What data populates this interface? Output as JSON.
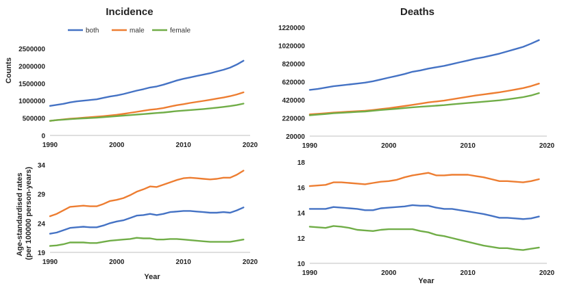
{
  "chart_data": [
    {
      "type": "line",
      "title": "Incidence",
      "xlabel": "",
      "ylabel": "Counts",
      "xlim": [
        1990,
        2020
      ],
      "ylim": [
        0,
        2500000
      ],
      "xticks": [
        "1990",
        "2000",
        "2010",
        "2020"
      ],
      "yticks": [
        "0",
        "500000",
        "1000000",
        "1500000",
        "2000000",
        "2500000"
      ],
      "legend": "top",
      "x": [
        1990,
        1991,
        1992,
        1993,
        1994,
        1995,
        1996,
        1997,
        1998,
        1999,
        2000,
        2001,
        2002,
        2003,
        2004,
        2005,
        2006,
        2007,
        2008,
        2009,
        2010,
        2011,
        2012,
        2013,
        2014,
        2015,
        2016,
        2017,
        2018,
        2019
      ],
      "series": [
        {
          "name": "both",
          "color": "#4472C4",
          "values": [
            850000,
            880000,
            910000,
            950000,
            980000,
            1000000,
            1020000,
            1040000,
            1080000,
            1120000,
            1150000,
            1190000,
            1240000,
            1290000,
            1330000,
            1380000,
            1410000,
            1460000,
            1520000,
            1580000,
            1630000,
            1670000,
            1710000,
            1750000,
            1790000,
            1840000,
            1890000,
            1950000,
            2040000,
            2150000
          ]
        },
        {
          "name": "male",
          "color": "#ED7D31",
          "values": [
            420000,
            440000,
            460000,
            480000,
            495000,
            510000,
            525000,
            540000,
            555000,
            575000,
            595000,
            620000,
            650000,
            680000,
            710000,
            740000,
            760000,
            790000,
            830000,
            870000,
            900000,
            935000,
            965000,
            995000,
            1025000,
            1060000,
            1090000,
            1130000,
            1180000,
            1240000
          ]
        },
        {
          "name": "female",
          "color": "#70AD47",
          "values": [
            420000,
            440000,
            455000,
            468000,
            480000,
            492000,
            500000,
            510000,
            525000,
            540000,
            555000,
            570000,
            585000,
            600000,
            615000,
            630000,
            645000,
            660000,
            680000,
            700000,
            715000,
            730000,
            745000,
            760000,
            780000,
            800000,
            820000,
            845000,
            875000,
            915000
          ]
        }
      ]
    },
    {
      "type": "line",
      "title": "Deaths",
      "xlabel": "",
      "ylabel": "",
      "xlim": [
        1990,
        2020
      ],
      "ylim": [
        20000,
        1220000
      ],
      "xticks": [
        "1990",
        "2000",
        "2010",
        "2020"
      ],
      "yticks": [
        "20000",
        "220000",
        "420000",
        "620000",
        "820000",
        "1020000",
        "1220000"
      ],
      "x": [
        1990,
        1991,
        1992,
        1993,
        1994,
        1995,
        1996,
        1997,
        1998,
        1999,
        2000,
        2001,
        2002,
        2003,
        2004,
        2005,
        2006,
        2007,
        2008,
        2009,
        2010,
        2011,
        2012,
        2013,
        2014,
        2015,
        2016,
        2017,
        2018,
        2019
      ],
      "series": [
        {
          "name": "both",
          "color": "#4472C4",
          "values": [
            530000,
            540000,
            555000,
            570000,
            580000,
            590000,
            600000,
            610000,
            625000,
            645000,
            665000,
            685000,
            705000,
            730000,
            745000,
            765000,
            780000,
            795000,
            815000,
            835000,
            855000,
            875000,
            890000,
            910000,
            930000,
            955000,
            980000,
            1005000,
            1040000,
            1080000
          ]
        },
        {
          "name": "male",
          "color": "#ED7D31",
          "values": [
            260000,
            265000,
            272000,
            280000,
            285000,
            290000,
            295000,
            300000,
            308000,
            318000,
            328000,
            340000,
            352000,
            365000,
            378000,
            392000,
            402000,
            412000,
            426000,
            440000,
            455000,
            468000,
            480000,
            492000,
            504000,
            518000,
            534000,
            550000,
            572000,
            600000
          ]
        },
        {
          "name": "female",
          "color": "#70AD47",
          "values": [
            250000,
            257000,
            264000,
            272000,
            277000,
            282000,
            287000,
            292000,
            300000,
            308000,
            315000,
            322000,
            330000,
            338000,
            344000,
            350000,
            356000,
            362000,
            370000,
            378000,
            385000,
            392000,
            400000,
            407000,
            415000,
            425000,
            437000,
            450000,
            468000,
            495000
          ]
        }
      ]
    },
    {
      "type": "line",
      "title": "",
      "xlabel": "Year",
      "ylabel": "Age-standardised rates\n(per 100000 person-years)",
      "xlim": [
        1990,
        2020
      ],
      "ylim": [
        19,
        34
      ],
      "xticks": [
        "1990",
        "2000",
        "2010",
        "2020"
      ],
      "yticks": [
        "19",
        "24",
        "29",
        "34"
      ],
      "x": [
        1990,
        1991,
        1992,
        1993,
        1994,
        1995,
        1996,
        1997,
        1998,
        1999,
        2000,
        2001,
        2002,
        2003,
        2004,
        2005,
        2006,
        2007,
        2008,
        2009,
        2010,
        2011,
        2012,
        2013,
        2014,
        2015,
        2016,
        2017,
        2018,
        2019
      ],
      "series": [
        {
          "name": "both",
          "color": "#4472C4",
          "values": [
            22.2,
            22.4,
            22.8,
            23.2,
            23.3,
            23.4,
            23.3,
            23.3,
            23.6,
            24.0,
            24.3,
            24.5,
            24.9,
            25.3,
            25.4,
            25.6,
            25.4,
            25.6,
            25.9,
            26.0,
            26.1,
            26.1,
            26.0,
            25.9,
            25.8,
            25.8,
            25.9,
            25.8,
            26.2,
            26.7
          ]
        },
        {
          "name": "male",
          "color": "#ED7D31",
          "values": [
            25.2,
            25.6,
            26.2,
            26.8,
            26.9,
            27.0,
            26.9,
            26.9,
            27.3,
            27.8,
            28.0,
            28.3,
            28.8,
            29.4,
            29.8,
            30.3,
            30.2,
            30.6,
            31.0,
            31.4,
            31.7,
            31.8,
            31.7,
            31.6,
            31.5,
            31.6,
            31.8,
            31.8,
            32.3,
            33.0
          ]
        },
        {
          "name": "female",
          "color": "#70AD47",
          "values": [
            20.1,
            20.2,
            20.4,
            20.7,
            20.7,
            20.7,
            20.6,
            20.6,
            20.8,
            21.0,
            21.1,
            21.2,
            21.3,
            21.5,
            21.4,
            21.4,
            21.2,
            21.2,
            21.3,
            21.3,
            21.2,
            21.1,
            21.0,
            20.9,
            20.8,
            20.8,
            20.8,
            20.8,
            21.0,
            21.2
          ]
        }
      ]
    },
    {
      "type": "line",
      "title": "",
      "xlabel": "Year",
      "ylabel": "",
      "xlim": [
        1990,
        2020
      ],
      "ylim": [
        10,
        18
      ],
      "xticks": [
        "1990",
        "2000",
        "2010",
        "2020"
      ],
      "yticks": [
        "10",
        "12",
        "14",
        "16",
        "18"
      ],
      "x": [
        1990,
        1991,
        1992,
        1993,
        1994,
        1995,
        1996,
        1997,
        1998,
        1999,
        2000,
        2001,
        2002,
        2003,
        2004,
        2005,
        2006,
        2007,
        2008,
        2009,
        2010,
        2011,
        2012,
        2013,
        2014,
        2015,
        2016,
        2017,
        2018,
        2019
      ],
      "series": [
        {
          "name": "both",
          "color": "#4472C4",
          "values": [
            14.3,
            14.3,
            14.3,
            14.45,
            14.4,
            14.35,
            14.3,
            14.2,
            14.2,
            14.35,
            14.4,
            14.45,
            14.5,
            14.6,
            14.55,
            14.55,
            14.4,
            14.3,
            14.3,
            14.2,
            14.1,
            14.0,
            13.9,
            13.75,
            13.6,
            13.6,
            13.55,
            13.5,
            13.55,
            13.7
          ]
        },
        {
          "name": "male",
          "color": "#ED7D31",
          "values": [
            16.1,
            16.15,
            16.2,
            16.4,
            16.4,
            16.35,
            16.3,
            16.25,
            16.35,
            16.45,
            16.5,
            16.6,
            16.8,
            16.95,
            17.05,
            17.15,
            16.95,
            16.95,
            17.0,
            17.0,
            17.0,
            16.9,
            16.8,
            16.65,
            16.5,
            16.5,
            16.45,
            16.4,
            16.5,
            16.65
          ]
        },
        {
          "name": "female",
          "color": "#70AD47",
          "values": [
            12.9,
            12.85,
            12.8,
            12.95,
            12.9,
            12.8,
            12.65,
            12.6,
            12.55,
            12.65,
            12.7,
            12.7,
            12.7,
            12.7,
            12.55,
            12.45,
            12.25,
            12.15,
            12.0,
            11.85,
            11.7,
            11.55,
            11.4,
            11.3,
            11.2,
            11.2,
            11.1,
            11.05,
            11.15,
            11.25
          ]
        }
      ]
    }
  ]
}
